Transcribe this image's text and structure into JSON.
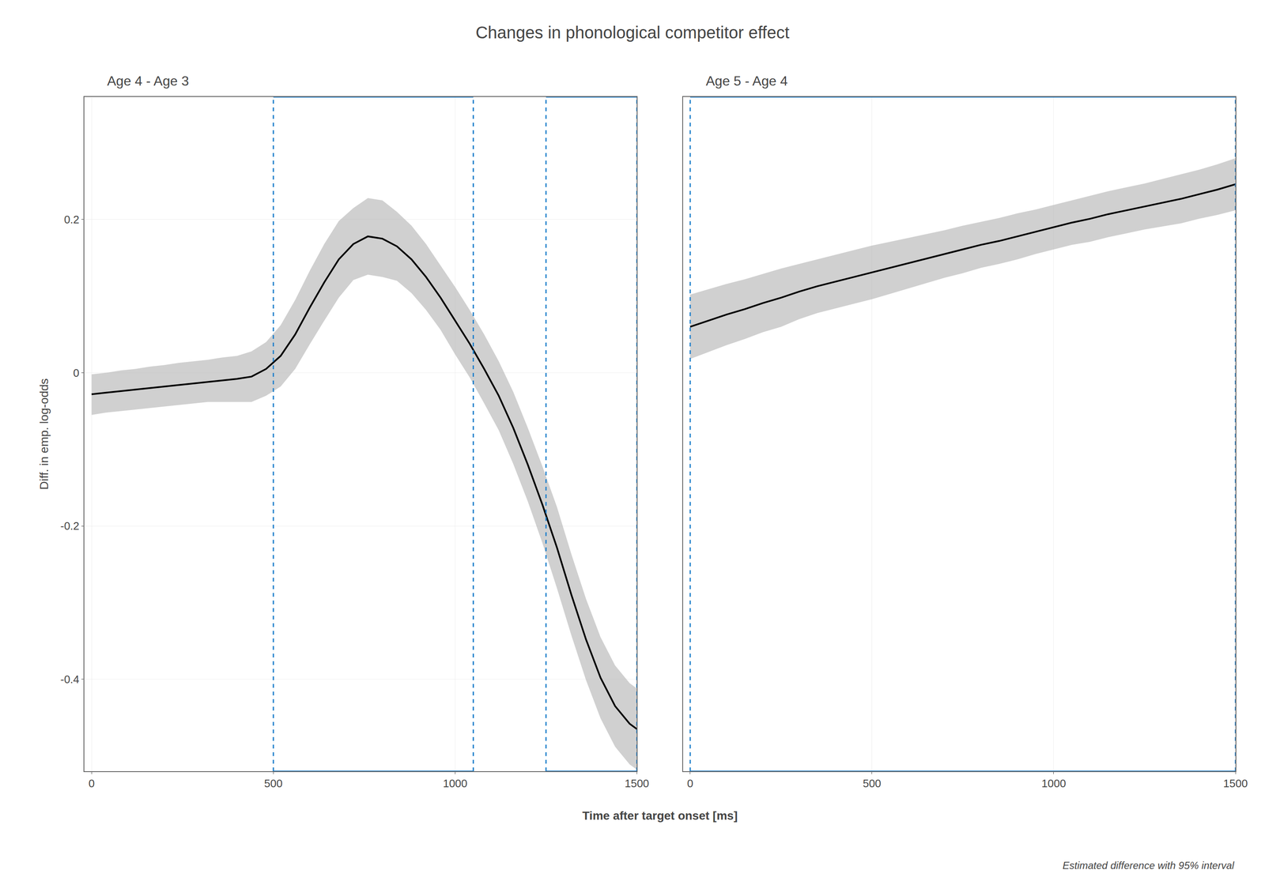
{
  "title": "Changes in phonological competitor effect",
  "xlabel": "Time after target onset [ms]",
  "annotations": [
    "Estimated difference with 95% interval"
  ],
  "chart_data": [
    {
      "type": "line",
      "subtitle": "Age 4 - Age 3",
      "ylabel": "Diff. in emp. log-odds",
      "grid": true,
      "xlim": [
        -20,
        1500
      ],
      "ylim": [
        -0.52,
        0.36
      ],
      "xticks": [
        0,
        500,
        1000,
        1500
      ],
      "yticks": [
        0.2,
        0.0,
        -0.2,
        -0.4
      ],
      "x": [
        0,
        40,
        80,
        120,
        160,
        200,
        240,
        280,
        320,
        360,
        400,
        440,
        480,
        520,
        560,
        600,
        640,
        680,
        720,
        760,
        800,
        840,
        880,
        920,
        960,
        1000,
        1040,
        1080,
        1120,
        1160,
        1200,
        1240,
        1280,
        1320,
        1360,
        1400,
        1440,
        1480,
        1500
      ],
      "series": [
        {
          "color": "#000000",
          "values": [
            -0.028,
            -0.026,
            -0.024,
            -0.022,
            -0.02,
            -0.018,
            -0.016,
            -0.014,
            -0.012,
            -0.01,
            -0.008,
            -0.005,
            0.005,
            0.022,
            0.05,
            0.085,
            0.118,
            0.148,
            0.168,
            0.178,
            0.175,
            0.165,
            0.148,
            0.125,
            0.098,
            0.068,
            0.038,
            0.005,
            -0.03,
            -0.072,
            -0.12,
            -0.172,
            -0.228,
            -0.29,
            -0.348,
            -0.398,
            -0.435,
            -0.458,
            -0.465
          ],
          "upper": [
            -0.002,
            0.0,
            0.003,
            0.005,
            0.008,
            0.01,
            0.013,
            0.015,
            0.017,
            0.02,
            0.022,
            0.028,
            0.04,
            0.062,
            0.095,
            0.133,
            0.168,
            0.198,
            0.215,
            0.228,
            0.225,
            0.21,
            0.192,
            0.168,
            0.14,
            0.112,
            0.082,
            0.05,
            0.015,
            -0.025,
            -0.072,
            -0.122,
            -0.175,
            -0.237,
            -0.295,
            -0.345,
            -0.382,
            -0.405,
            -0.412
          ],
          "lower": [
            -0.055,
            -0.052,
            -0.05,
            -0.048,
            -0.046,
            -0.044,
            -0.042,
            -0.04,
            -0.038,
            -0.038,
            -0.038,
            -0.038,
            -0.03,
            -0.018,
            0.005,
            0.037,
            0.068,
            0.098,
            0.121,
            0.128,
            0.125,
            0.12,
            0.104,
            0.082,
            0.056,
            0.024,
            -0.006,
            -0.04,
            -0.075,
            -0.119,
            -0.168,
            -0.222,
            -0.281,
            -0.343,
            -0.401,
            -0.451,
            -0.488,
            -0.511,
            -0.518
          ],
          "interval_color": "#b0b0b0"
        }
      ],
      "boxes": [
        {
          "x0": 500,
          "x1": 1050,
          "y0": -0.52,
          "y1": 0.36,
          "color": "#2080cc"
        },
        {
          "x0": 1250,
          "x1": 1500,
          "y0": -0.52,
          "y1": 0.36,
          "color": "#2080cc"
        }
      ]
    },
    {
      "type": "line",
      "subtitle": "Age 5 - Age 4",
      "grid": true,
      "tick_labels": "x",
      "xlim": [
        -20,
        1500
      ],
      "ylim": [
        -0.52,
        0.36
      ],
      "xticks": [
        0,
        500,
        1000,
        1500
      ],
      "yticks": [],
      "x": [
        0,
        50,
        100,
        150,
        200,
        250,
        300,
        350,
        400,
        450,
        500,
        550,
        600,
        650,
        700,
        750,
        800,
        850,
        900,
        950,
        1000,
        1050,
        1100,
        1150,
        1200,
        1250,
        1300,
        1350,
        1400,
        1450,
        1500
      ],
      "series": [
        {
          "color": "#000000",
          "values": [
            0.06,
            0.068,
            0.076,
            0.083,
            0.091,
            0.098,
            0.106,
            0.113,
            0.119,
            0.125,
            0.131,
            0.137,
            0.143,
            0.149,
            0.155,
            0.161,
            0.167,
            0.172,
            0.178,
            0.184,
            0.19,
            0.196,
            0.201,
            0.207,
            0.212,
            0.217,
            0.222,
            0.227,
            0.233,
            0.239,
            0.246
          ],
          "upper": [
            0.102,
            0.109,
            0.116,
            0.122,
            0.129,
            0.136,
            0.142,
            0.148,
            0.154,
            0.16,
            0.166,
            0.171,
            0.176,
            0.181,
            0.186,
            0.192,
            0.197,
            0.202,
            0.208,
            0.213,
            0.219,
            0.225,
            0.231,
            0.237,
            0.242,
            0.247,
            0.253,
            0.259,
            0.265,
            0.272,
            0.28
          ],
          "lower": [
            0.018,
            0.027,
            0.036,
            0.044,
            0.053,
            0.06,
            0.07,
            0.078,
            0.084,
            0.09,
            0.096,
            0.103,
            0.11,
            0.117,
            0.124,
            0.13,
            0.137,
            0.142,
            0.148,
            0.155,
            0.161,
            0.167,
            0.171,
            0.177,
            0.182,
            0.187,
            0.191,
            0.195,
            0.201,
            0.206,
            0.212
          ],
          "interval_color": "#b0b0b0"
        }
      ],
      "boxes": [
        {
          "x0": 0,
          "x1": 1500,
          "y0": -0.52,
          "y1": 0.36,
          "color": "#2080cc"
        }
      ]
    }
  ]
}
